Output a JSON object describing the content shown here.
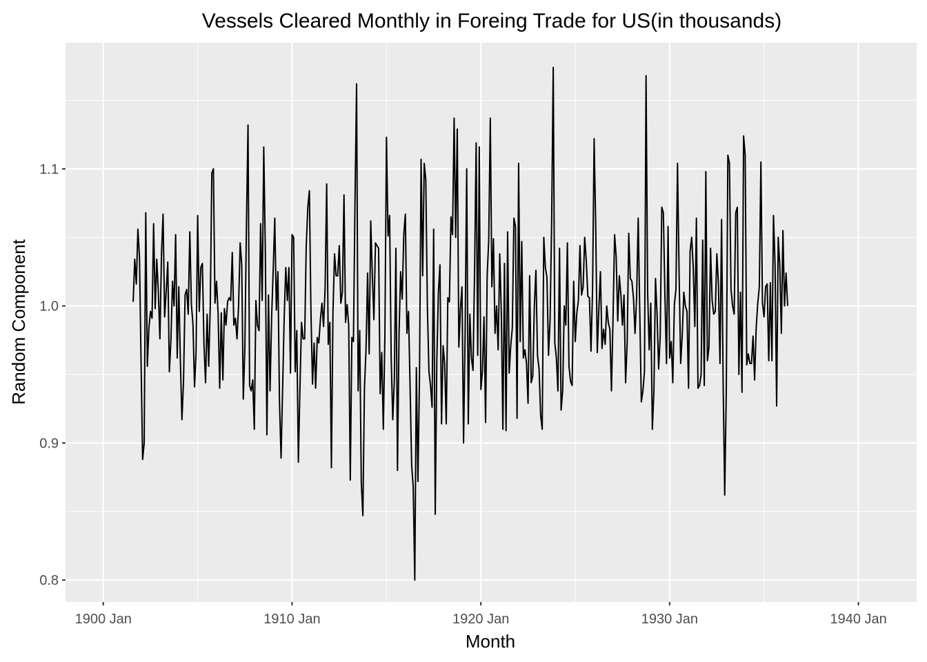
{
  "chart_data": {
    "type": "line",
    "title": "Vessels Cleared Monthly in Foreing Trade for US(in thousands)",
    "xlabel": "Month",
    "ylabel": "Random Component",
    "x_type": "date",
    "xlim": [
      "1898-01",
      "1943-02"
    ],
    "ylim": [
      0.784,
      1.192
    ],
    "x_ticks": [
      {
        "value": "1900-01",
        "label": "1900 Jan"
      },
      {
        "value": "1910-01",
        "label": "1910 Jan"
      },
      {
        "value": "1920-01",
        "label": "1920 Jan"
      },
      {
        "value": "1930-01",
        "label": "1930 Jan"
      },
      {
        "value": "1940-01",
        "label": "1940 Jan"
      }
    ],
    "y_ticks": [
      {
        "value": 0.8,
        "label": "0.8"
      },
      {
        "value": 0.9,
        "label": "0.9"
      },
      {
        "value": 1.0,
        "label": "1.0"
      },
      {
        "value": 1.1,
        "label": "1.1"
      }
    ],
    "grid": true,
    "background": "#ebebeb",
    "grid_color": "#ffffff",
    "line_color": "#000000",
    "series": [
      {
        "start": "1901-08",
        "frequency": "monthly",
        "values": [
          1.003,
          1.034,
          1.016,
          1.056,
          1.036,
          0.96,
          0.888,
          0.9,
          1.068,
          0.956,
          0.984,
          0.996,
          0.991,
          1.06,
          0.998,
          1.034,
          1.01,
          0.976,
          1.038,
          1.067,
          0.992,
          1.011,
          1.032,
          0.952,
          0.975,
          1.018,
          1.0,
          1.052,
          0.962,
          1.014,
          0.96,
          0.917,
          0.945,
          1.008,
          1.012,
          0.994,
          1.054,
          1.001,
          0.987,
          0.941,
          0.967,
          1.066,
          0.996,
          1.028,
          1.031,
          0.972,
          0.944,
          0.994,
          0.956,
          1.0,
          1.097,
          1.1,
          1.002,
          1.018,
          0.994,
          0.94,
          0.995,
          0.946,
          0.998,
          0.986,
          1.003,
          1.006,
          1.004,
          1.039,
          0.986,
          0.991,
          0.976,
          1.0,
          1.046,
          1.03,
          0.932,
          0.97,
          1.06,
          1.132,
          0.942,
          0.938,
          0.946,
          0.91,
          1.004,
          0.986,
          0.982,
          1.06,
          1.004,
          1.116,
          1.04,
          0.906,
          1.008,
          0.938,
          0.992,
          1.026,
          1.064,
          0.997,
          1.025,
          0.93,
          0.889,
          0.94,
          0.992,
          1.028,
          1.004,
          1.028,
          0.951,
          1.052,
          1.05,
          0.952,
          0.982,
          0.886,
          0.94,
          0.988,
          0.976,
          0.976,
          1.044,
          1.072,
          1.084,
          0.996,
          0.943,
          0.973,
          0.94,
          0.977,
          0.973,
          0.99,
          1.002,
          0.985,
          1.013,
          1.089,
          0.972,
          0.988,
          0.882,
          0.996,
          1.038,
          1.022,
          1.022,
          1.044,
          1.002,
          1.01,
          1.081,
          0.988,
          1.001,
          0.986,
          0.873,
          0.977,
          0.974,
          1.076,
          1.162,
          0.938,
          0.982,
          0.871,
          0.847,
          0.94,
          0.968,
          1.024,
          0.965,
          1.062,
          1.023,
          0.99,
          1.046,
          1.044,
          1.042,
          0.936,
          0.966,
          0.91,
          0.978,
          1.123,
          1.051,
          1.066,
          0.962,
          0.917,
          0.946,
          1.042,
          0.88,
          0.98,
          1.025,
          1.005,
          1.052,
          1.067,
          0.98,
          0.996,
          0.942,
          0.884,
          0.868,
          0.8,
          0.955,
          0.872,
          0.95,
          1.107,
          1.022,
          1.104,
          1.092,
          1.0,
          0.952,
          0.942,
          0.926,
          1.056,
          0.848,
          0.96,
          1.01,
          1.03,
          0.914,
          0.971,
          0.958,
          0.914,
          1.006,
          1.003,
          1.065,
          1.052,
          1.137,
          1.05,
          1.129,
          0.97,
          0.998,
          1.014,
          0.9,
          0.98,
          1.1,
          0.914,
          0.994,
          0.962,
          0.953,
          1.025,
          1.119,
          0.964,
          1.116,
          0.939,
          0.952,
          0.992,
          0.915,
          1.022,
          1.048,
          1.137,
          1.014,
          1.049,
          0.98,
          1.0,
          0.968,
          1.038,
          0.995,
          0.91,
          1.031,
          0.909,
          1.054,
          0.951,
          0.971,
          0.984,
          1.064,
          1.058,
          0.918,
          1.104,
          0.974,
          1.047,
          0.962,
          0.968,
          0.958,
          0.929,
          1.022,
          0.944,
          0.949,
          1.0,
          1.026,
          0.964,
          0.954,
          0.92,
          0.91,
          1.05,
          1.028,
          1.021,
          0.964,
          0.99,
          1.062,
          1.174,
          0.973,
          0.962,
          0.938,
          1.042,
          0.924,
          0.938,
          1.0,
          0.986,
          1.046,
          0.956,
          0.945,
          0.942,
          1.018,
          0.974,
          0.995,
          1.004,
          1.044,
          1.008,
          1.014,
          1.05,
          1.033,
          1.007,
          1.006,
          0.967,
          1.012,
          1.122,
          1.058,
          0.966,
          0.998,
          1.025,
          0.969,
          0.983,
          0.972,
          1.0,
          0.988,
          0.983,
          0.938,
          0.99,
          1.052,
          1.036,
          0.989,
          1.022,
          1.008,
          0.986,
          1.008,
          0.944,
          0.973,
          1.053,
          1.02,
          1.018,
          1.006,
          0.98,
          1.006,
          1.064,
          0.996,
          0.93,
          0.938,
          0.952,
          1.168,
          1.01,
          0.968,
          1.002,
          0.91,
          0.938,
          1.02,
          0.994,
          0.954,
          0.978,
          1.072,
          1.068,
          1.007,
          0.958,
          1.058,
          0.962,
          0.974,
          0.944,
          1.001,
          1.012,
          1.104,
          1.024,
          0.958,
          0.979,
          1.01,
          1.0,
          0.996,
          0.94,
          1.04,
          1.05,
          1.028,
          0.985,
          1.064,
          0.94,
          0.942,
          0.95,
          1.048,
          0.942,
          1.098,
          0.96,
          0.97,
          1.042,
          1.004,
          0.994,
          0.996,
          1.038,
          1.016,
          0.958,
          1.063,
          0.944,
          0.862,
          0.938,
          1.11,
          1.104,
          1.012,
          1.0,
          0.994,
          1.068,
          1.072,
          0.95,
          1.01,
          0.937,
          1.124,
          1.11,
          0.957,
          0.965,
          0.958,
          0.958,
          0.978,
          0.946,
          0.984,
          1.002,
          1.014,
          1.105,
          1.002,
          0.992,
          1.014,
          1.016,
          0.96,
          1.017,
          0.96,
          1.066,
          1.03,
          0.927,
          1.05,
          1.03,
          0.98,
          1.055,
          1.0,
          1.024,
          1.0
        ]
      }
    ]
  }
}
